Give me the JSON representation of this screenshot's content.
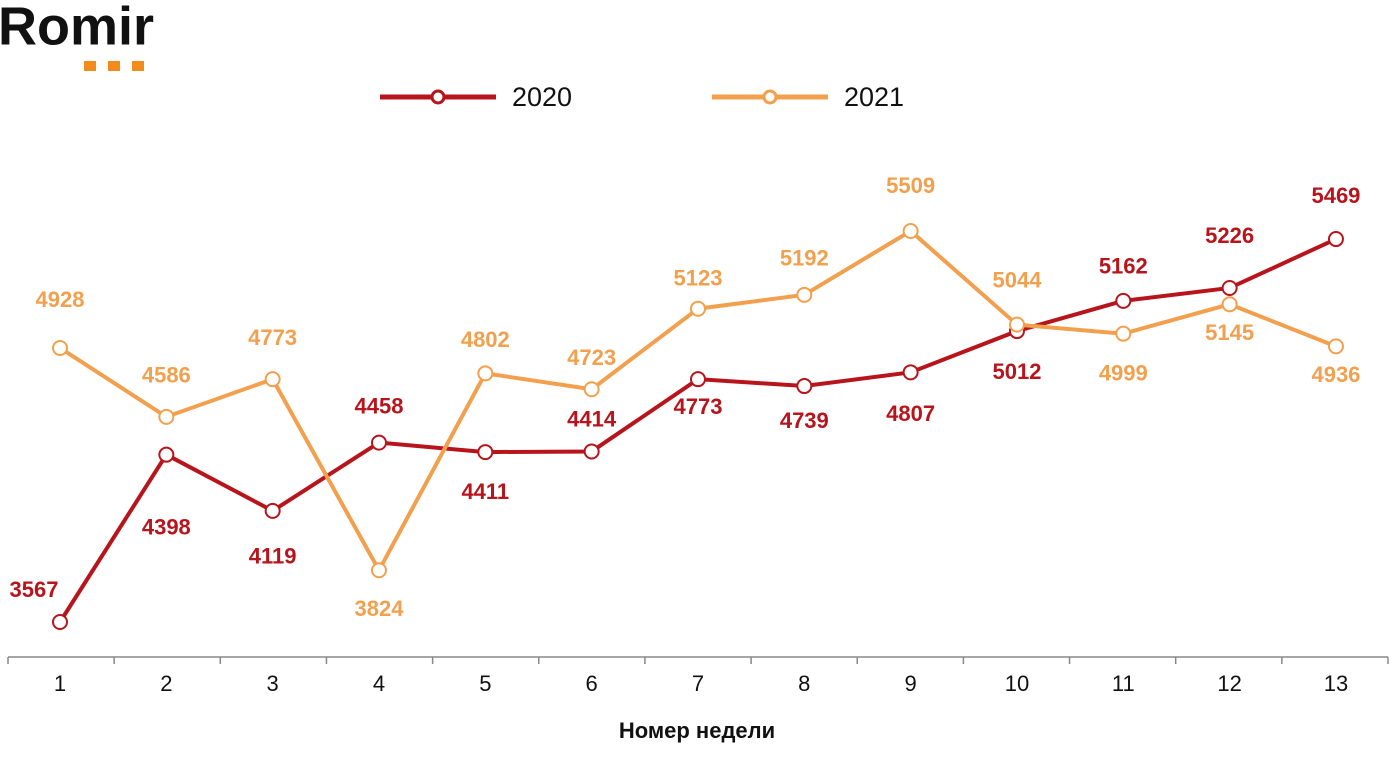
{
  "logo": "Romir",
  "chart_data": {
    "type": "line",
    "x_label": "Номер недели",
    "categories": [
      "1",
      "2",
      "3",
      "4",
      "5",
      "6",
      "7",
      "8",
      "9",
      "10",
      "11",
      "12",
      "13"
    ],
    "series": [
      {
        "name": "2020",
        "color": "#b8141c",
        "values": [
          3567,
          4398,
          4119,
          4458,
          4411,
          4414,
          4773,
          4739,
          4807,
          5012,
          5162,
          5226,
          5469
        ]
      },
      {
        "name": "2021",
        "color": "#f2a04e",
        "values": [
          4928,
          4586,
          4773,
          3824,
          4802,
          4723,
          5123,
          5192,
          5509,
          5044,
          4999,
          5145,
          4936
        ]
      }
    ]
  }
}
